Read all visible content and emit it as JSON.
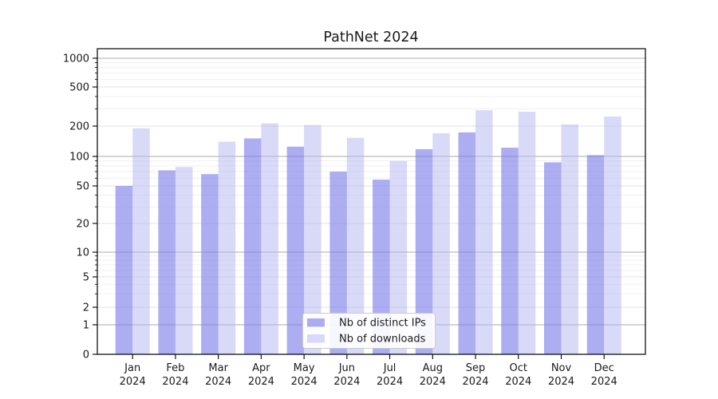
{
  "chart_data": {
    "type": "bar",
    "title": "PathNet 2024",
    "categories": [
      "Jan 2024",
      "Feb 2024",
      "Mar 2024",
      "Apr 2024",
      "May 2024",
      "Jun 2024",
      "Jul 2024",
      "Aug 2024",
      "Sep 2024",
      "Oct 2024",
      "Nov 2024",
      "Dec 2024"
    ],
    "series": [
      {
        "name": "Nb of distinct IPs",
        "color": "#7a7ae8",
        "opacity": 0.62,
        "values": [
          50,
          72,
          66,
          151,
          125,
          70,
          58,
          118,
          173,
          122,
          87,
          103
        ]
      },
      {
        "name": "Nb of downloads",
        "color": "#b4b4f2",
        "opacity": 0.5,
        "values": [
          190,
          78,
          140,
          213,
          205,
          153,
          90,
          170,
          290,
          280,
          208,
          250
        ]
      }
    ],
    "yscale": "log-with-zero",
    "ytick_values": [
      0,
      1,
      2,
      5,
      10,
      20,
      50,
      100,
      200,
      500,
      1000
    ],
    "ytick_labels": [
      "0",
      "1",
      "2",
      "5",
      "10",
      "20",
      "50",
      "100",
      "200",
      "500",
      "1000"
    ],
    "minor_gridline_values": [
      3,
      4,
      6,
      7,
      8,
      9,
      30,
      40,
      60,
      70,
      80,
      90,
      300,
      400,
      600,
      700,
      800,
      900
    ],
    "ylim": [
      0,
      1200
    ],
    "grid": true,
    "legend_position": "lower center",
    "colors": {
      "decade_gridline": "#ababab",
      "labeled_gridline": "#e3e3e3",
      "minor_gridline": "#f0f0f0",
      "spine": "#000000",
      "legend_border": "#cccccc",
      "legend_background": "#ffffff"
    }
  }
}
